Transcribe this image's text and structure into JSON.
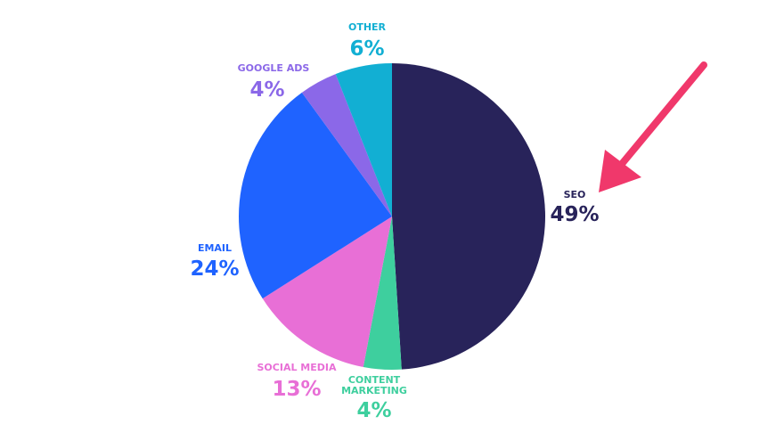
{
  "chart_data": {
    "type": "pie",
    "categories": [
      "SEO",
      "CONTENT MARKETING",
      "SOCIAL MEDIA",
      "EMAIL",
      "GOOGLE ADS",
      "OTHER"
    ],
    "values": [
      49,
      4,
      13,
      24,
      4,
      6
    ],
    "value_labels": [
      "49%",
      "4%",
      "13%",
      "24%",
      "4%",
      "6%"
    ],
    "colors": [
      "#28235a",
      "#3ecf9e",
      "#e86fd6",
      "#1f63ff",
      "#8b68e8",
      "#12afd3"
    ]
  }
}
